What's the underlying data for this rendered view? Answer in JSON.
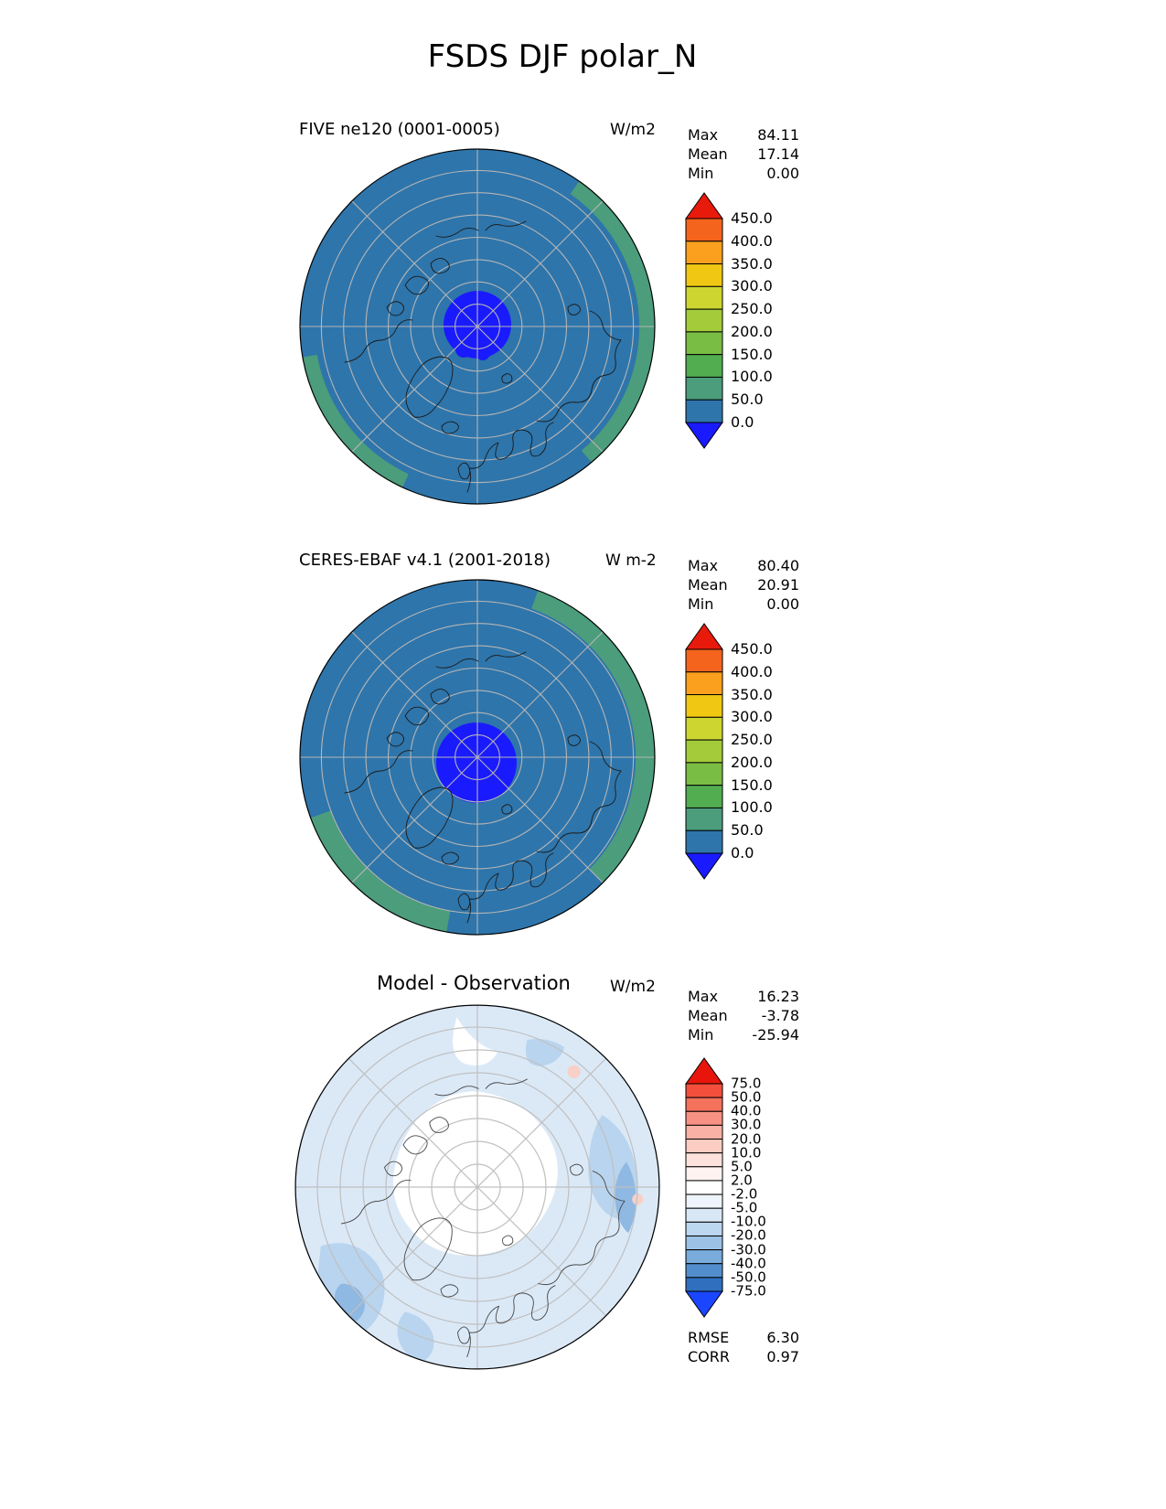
{
  "title": "FSDS DJF polar_N",
  "panels": [
    {
      "label": "FIVE ne120 (0001-0005)",
      "units": "W/m2",
      "stats": [
        {
          "label": "Max",
          "value": "84.11"
        },
        {
          "label": "Mean",
          "value": "17.14"
        },
        {
          "label": "Min",
          "value": "0.00"
        }
      ],
      "colorbar": {
        "ticks": [
          "450.0",
          "400.0",
          "350.0",
          "300.0",
          "250.0",
          "200.0",
          "150.0",
          "100.0",
          "50.0",
          "0.0"
        ],
        "colors": [
          "#e71a0c",
          "#f4641d",
          "#faa01e",
          "#f0c814",
          "#cdd631",
          "#a3cb3a",
          "#7abd45",
          "#52ad51",
          "#4b9d7c",
          "#2e75ab",
          "#1a1aff"
        ]
      }
    },
    {
      "label": "CERES-EBAF v4.1 (2001-2018)",
      "units": "W m-2",
      "stats": [
        {
          "label": "Max",
          "value": "80.40"
        },
        {
          "label": "Mean",
          "value": "20.91"
        },
        {
          "label": "Min",
          "value": "0.00"
        }
      ],
      "colorbar": {
        "ticks": [
          "450.0",
          "400.0",
          "350.0",
          "300.0",
          "250.0",
          "200.0",
          "150.0",
          "100.0",
          "50.0",
          "0.0"
        ],
        "colors": [
          "#e71a0c",
          "#f4641d",
          "#faa01e",
          "#f0c814",
          "#cdd631",
          "#a3cb3a",
          "#7abd45",
          "#52ad51",
          "#4b9d7c",
          "#2e75ab",
          "#1a1aff"
        ]
      }
    },
    {
      "label": "Model - Observation",
      "units": "W/m2",
      "stats": [
        {
          "label": "Max",
          "value": "16.23"
        },
        {
          "label": "Mean",
          "value": "-3.78"
        },
        {
          "label": "Min",
          "value": "-25.94"
        }
      ],
      "colorbar": {
        "ticks": [
          "75.0",
          "50.0",
          "40.0",
          "30.0",
          "20.0",
          "10.0",
          "5.0",
          "2.0",
          "-2.0",
          "-5.0",
          "-10.0",
          "-20.0",
          "-30.0",
          "-40.0",
          "-50.0",
          "-75.0"
        ],
        "colors": [
          "#e8150c",
          "#f34f3c",
          "#f4715c",
          "#f79183",
          "#fab1a5",
          "#fccdc3",
          "#fde2dc",
          "#fef3f0",
          "#ffffff",
          "#edf4fb",
          "#d9e8f6",
          "#bcd7f0",
          "#9cc3e6",
          "#79abdb",
          "#528ecd",
          "#2f6fbe",
          "#1a46ff"
        ]
      },
      "footer": [
        {
          "label": "RMSE",
          "value": "6.30"
        },
        {
          "label": "CORR",
          "value": "0.97"
        }
      ]
    }
  ],
  "map_colors": {
    "flux_base": "#2e75ab",
    "flux_green": "#4b9d7c",
    "flux_night": "#1a1aff",
    "grid": "#b5b5b5",
    "coast": "#1a1a1a",
    "diff_light": "#dbe9f7",
    "diff_mid": "#b9d4ee",
    "diff_deep": "#8fb8e2",
    "diff_pink": "#f8d0c8",
    "diff_grid": "#c0c0c0",
    "diff_coast": "#4a4a4a"
  },
  "chart_data": [
    {
      "type": "heatmap",
      "projection": "polar_stereographic_north",
      "variable": "FSDS",
      "season": "DJF",
      "region": "polar_N",
      "title": "FIVE ne120 (0001-0005)",
      "units": "W/m2",
      "stats": {
        "max": 84.11,
        "mean": 17.14,
        "min": 0.0
      },
      "contour_levels": [
        0,
        50,
        100,
        150,
        200,
        250,
        300,
        350,
        400,
        450
      ],
      "colorbar_extend": "both",
      "legend_position": "right"
    },
    {
      "type": "heatmap",
      "projection": "polar_stereographic_north",
      "variable": "FSDS",
      "season": "DJF",
      "region": "polar_N",
      "title": "CERES-EBAF v4.1 (2001-2018)",
      "units": "W m-2",
      "stats": {
        "max": 80.4,
        "mean": 20.91,
        "min": 0.0
      },
      "contour_levels": [
        0,
        50,
        100,
        150,
        200,
        250,
        300,
        350,
        400,
        450
      ],
      "colorbar_extend": "both",
      "legend_position": "right"
    },
    {
      "type": "heatmap",
      "projection": "polar_stereographic_north",
      "variable": "FSDS",
      "season": "DJF",
      "region": "polar_N",
      "title": "Model - Observation",
      "units": "W/m2",
      "stats": {
        "max": 16.23,
        "mean": -3.78,
        "min": -25.94
      },
      "contour_levels": [
        -75,
        -50,
        -40,
        -30,
        -20,
        -10,
        -5,
        -2,
        2,
        5,
        10,
        20,
        30,
        40,
        50,
        75
      ],
      "rmse": 6.3,
      "corr": 0.97,
      "colorbar_extend": "both",
      "legend_position": "right"
    }
  ]
}
